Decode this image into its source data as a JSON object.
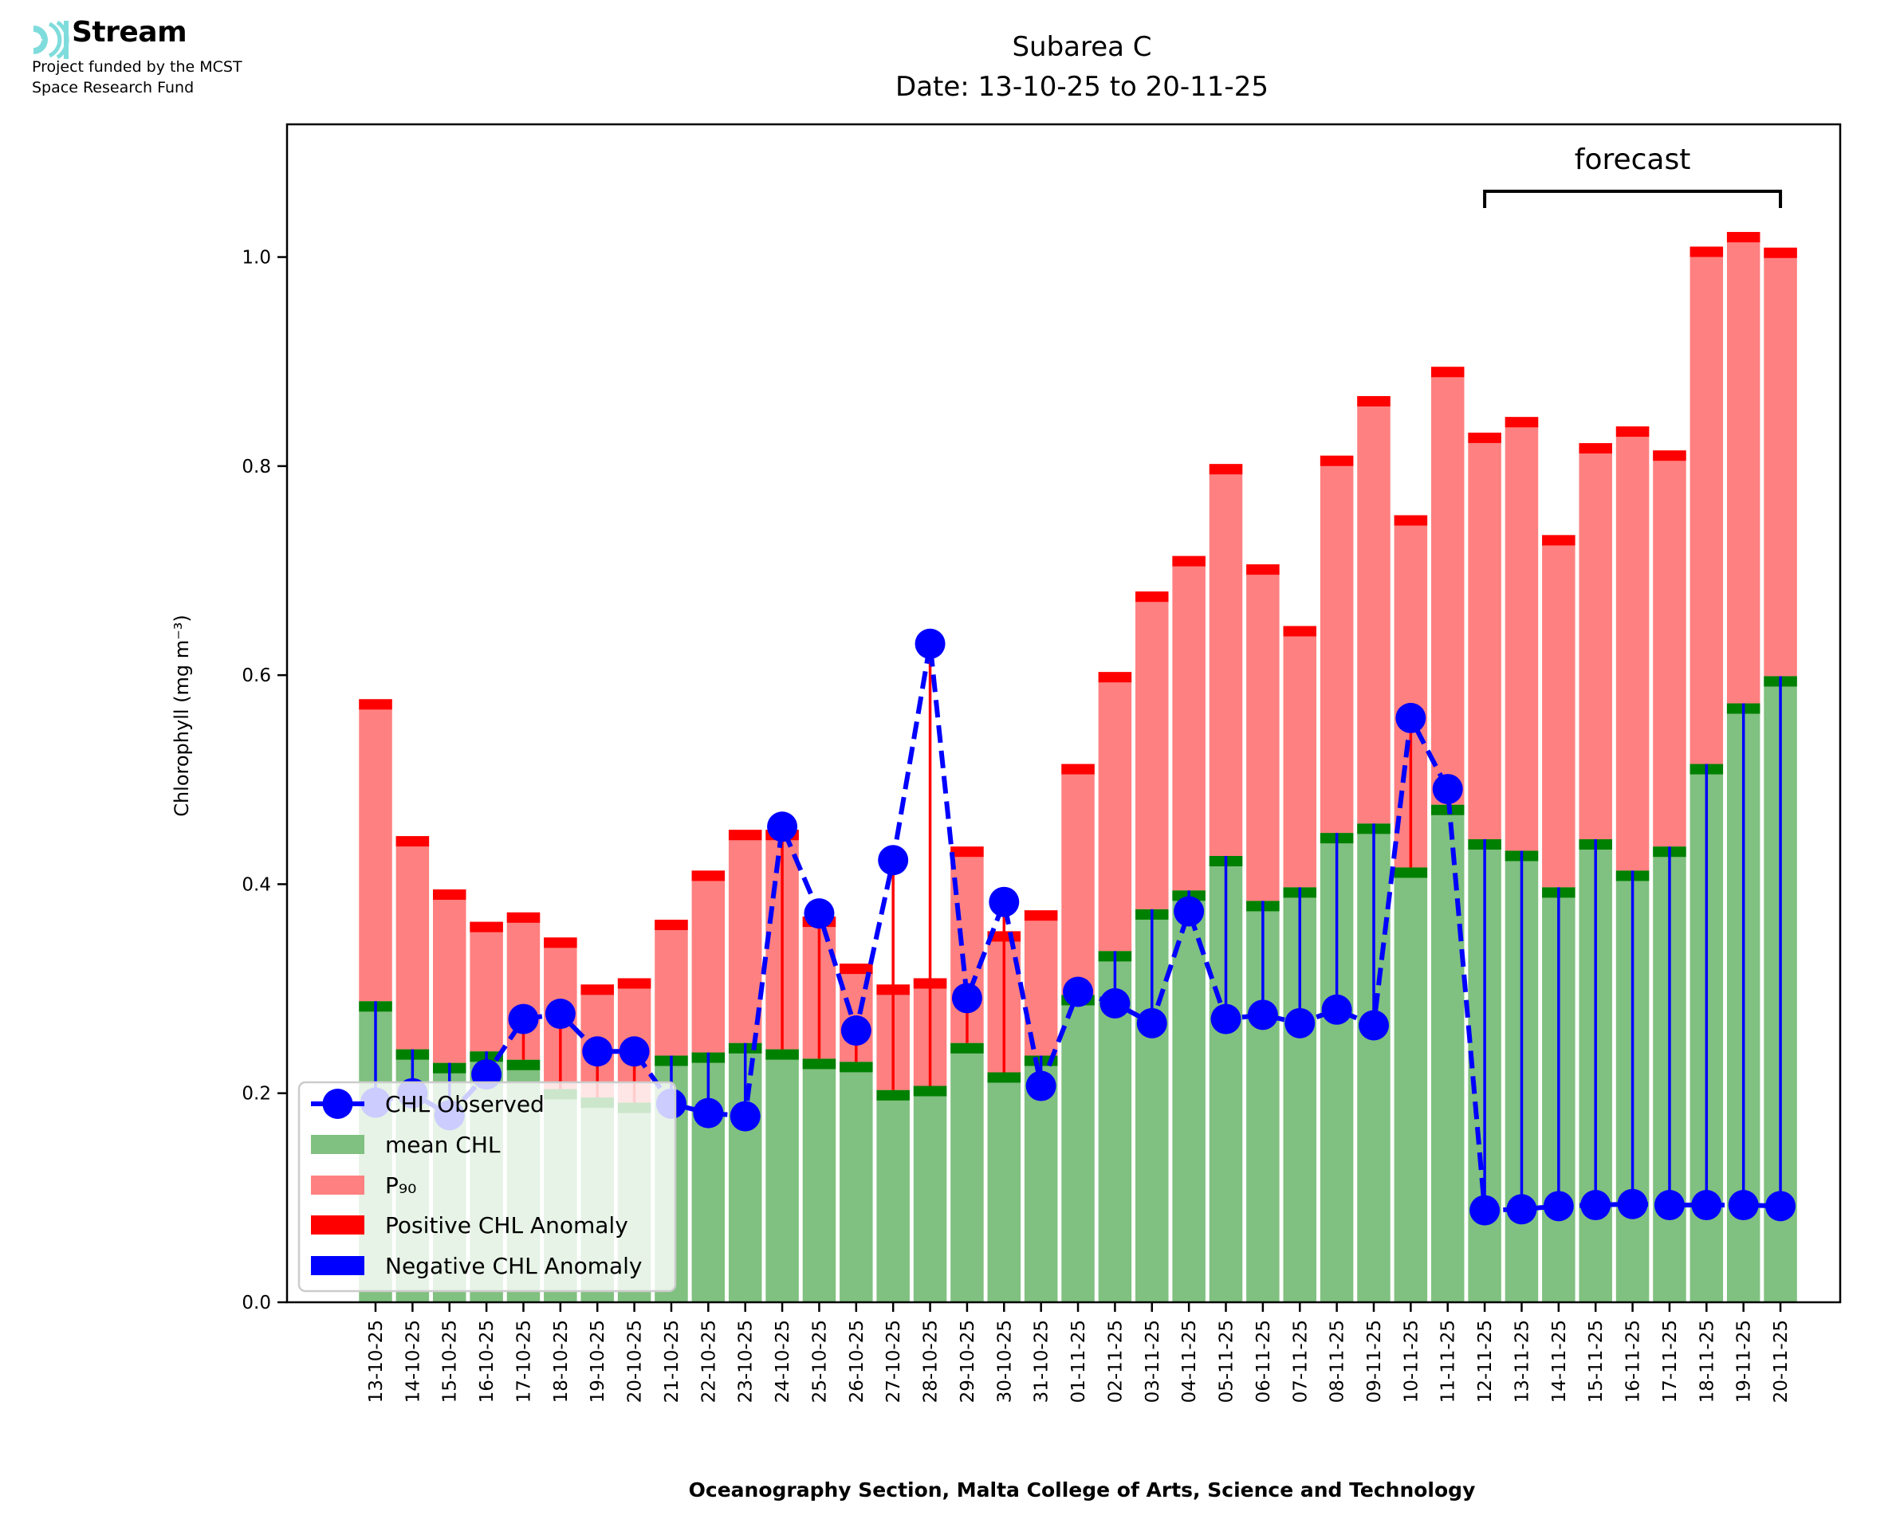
{
  "header": {
    "logo_name": "Stream",
    "logo_subtitle_line1": "Project funded by the MCST",
    "logo_subtitle_line2": "Space Research Fund"
  },
  "colors": {
    "mean_fill": "#80c080",
    "mean_cap": "#008000",
    "p90_fill": "#ff8080",
    "p90_cap": "#ff0000",
    "positive_anomaly": "#ff0000",
    "negative_anomaly": "#0000ff",
    "observed": "#0000ff",
    "logo": "#7fdcdc"
  },
  "chart_data": {
    "type": "bar",
    "title": "Subarea C",
    "subtitle": "Date: 13-10-25 to 20-11-25",
    "xlabel": "Oceanography Section, Malta College of Arts, Science and Technology",
    "ylabel": "Chlorophyll (mg m⁻³)",
    "ylim": [
      0,
      1.127
    ],
    "yticks": [
      0.0,
      0.2,
      0.4,
      0.6,
      0.8,
      1.0
    ],
    "ytick_labels": [
      "0.0",
      "0.2",
      "0.4",
      "0.6",
      "0.8",
      "1.0"
    ],
    "grid": false,
    "legend_position": "lower-left",
    "annotation": {
      "text": "forecast",
      "from_category": "12-11-25",
      "to_category": "20-11-25"
    },
    "categories": [
      "13-10-25",
      "14-10-25",
      "15-10-25",
      "16-10-25",
      "17-10-25",
      "18-10-25",
      "19-10-25",
      "20-10-25",
      "21-10-25",
      "22-10-25",
      "23-10-25",
      "24-10-25",
      "25-10-25",
      "26-10-25",
      "27-10-25",
      "28-10-25",
      "29-10-25",
      "30-10-25",
      "31-10-25",
      "01-11-25",
      "02-11-25",
      "03-11-25",
      "04-11-25",
      "05-11-25",
      "06-11-25",
      "07-11-25",
      "08-11-25",
      "09-11-25",
      "10-11-25",
      "11-11-25",
      "12-11-25",
      "13-11-25",
      "14-11-25",
      "15-11-25",
      "16-11-25",
      "17-11-25",
      "18-11-25",
      "19-11-25",
      "20-11-25"
    ],
    "series": [
      {
        "name": "mean CHL",
        "kind": "bar",
        "values": [
          0.288,
          0.242,
          0.229,
          0.24,
          0.232,
          0.204,
          0.196,
          0.191,
          0.236,
          0.239,
          0.248,
          0.242,
          0.233,
          0.23,
          0.203,
          0.207,
          0.248,
          0.22,
          0.236,
          0.294,
          0.336,
          0.376,
          0.394,
          0.427,
          0.384,
          0.397,
          0.449,
          0.458,
          0.416,
          0.476,
          0.443,
          0.432,
          0.397,
          0.443,
          0.413,
          0.436,
          0.515,
          0.573,
          0.599
        ]
      },
      {
        "name": "P₉₀",
        "kind": "bar",
        "values": [
          0.577,
          0.446,
          0.395,
          0.364,
          0.373,
          0.349,
          0.304,
          0.31,
          0.366,
          0.413,
          0.452,
          0.452,
          0.369,
          0.324,
          0.304,
          0.31,
          0.436,
          0.355,
          0.375,
          0.515,
          0.603,
          0.68,
          0.714,
          0.802,
          0.706,
          0.647,
          0.81,
          0.867,
          0.753,
          0.895,
          0.832,
          0.847,
          0.734,
          0.822,
          0.838,
          0.815,
          1.01,
          1.024,
          1.009
        ]
      },
      {
        "name": "CHL Observed",
        "kind": "line",
        "values": [
          0.191,
          0.2,
          0.179,
          0.218,
          0.271,
          0.276,
          0.24,
          0.24,
          0.19,
          0.181,
          0.178,
          0.455,
          0.372,
          0.26,
          0.423,
          0.63,
          0.291,
          0.383,
          0.207,
          0.297,
          0.286,
          0.267,
          0.374,
          0.271,
          0.275,
          0.267,
          0.28,
          0.265,
          0.559,
          0.491,
          0.088,
          0.089,
          0.092,
          0.093,
          0.094,
          0.093,
          0.093,
          0.093,
          0.092
        ]
      }
    ],
    "legend": [
      "CHL Observed",
      "mean CHL",
      "P₉₀",
      "Positive CHL Anomaly",
      "Negative CHL Anomaly"
    ]
  }
}
